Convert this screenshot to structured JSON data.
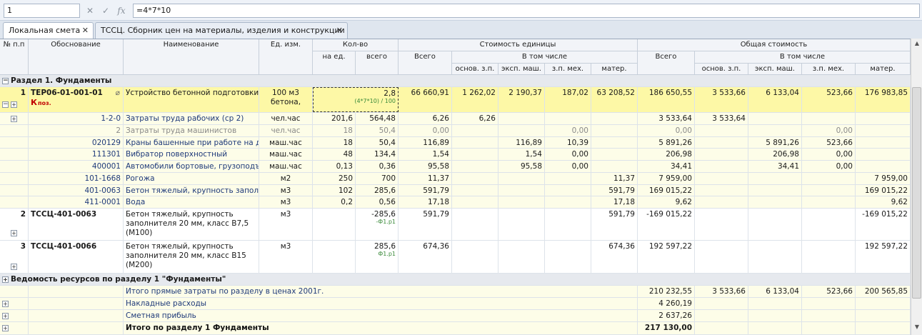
{
  "formula_bar": {
    "cell_ref": "1",
    "formula": "=4*7*10",
    "cancel_icon": "✕",
    "confirm_icon": "✓",
    "fx_icon": "fx"
  },
  "tabs": [
    {
      "label": "Локальная смета",
      "close": "✕"
    },
    {
      "label": "ТССЦ. Сборник цен на материалы, изделия и конструкции",
      "close": "✕"
    }
  ],
  "headers": {
    "num": "№ п.п",
    "basis": "Обоснование",
    "name": "Наименование",
    "unit": "Ед. изм.",
    "qty": "Кол-во",
    "qty_per_unit": "на ед.",
    "qty_total": "всего",
    "unit_cost": "Стоимость единицы",
    "total_cost": "Общая стоимость",
    "all": "Всего",
    "incl": "В том числе",
    "osn": "основ. з.п.",
    "eksp": "эксп. маш.",
    "zpmeh": "з.п. мех.",
    "mater": "матер."
  },
  "section1": "Раздел 1. Фундаменты",
  "item1": {
    "num": "1",
    "code": "ТЕР06-01-001-01",
    "k_label": "К",
    "k_sub": "поз.",
    "name": "Устройство бетонной подготовки",
    "unit": "100 м3 бетона,",
    "qty_total": "2,8",
    "qty_formula": "(4*7*10) / 100",
    "unit_all": "66 660,91",
    "unit_osn": "1 262,02",
    "unit_eksp": "2 190,37",
    "unit_zpmeh": "187,02",
    "unit_mater": "63 208,52",
    "tot_all": "186 650,55",
    "tot_osn": "3 533,66",
    "tot_eksp": "6 133,04",
    "tot_zpmeh": "523,66",
    "tot_mater": "176 983,85"
  },
  "subrows": [
    {
      "code": "1-2-0",
      "name": "Затраты труда рабочих (ср 2)",
      "unit": "чел.час",
      "per": "201,6",
      "tot": "564,48",
      "u_all": "6,26",
      "u_osn": "6,26",
      "u_eksp": "",
      "u_zpmeh": "",
      "u_mater": "",
      "t_all": "3 533,64",
      "t_osn": "3 533,64",
      "t_eksp": "",
      "t_zpmeh": "",
      "t_mater": "",
      "grey": false
    },
    {
      "code": "2",
      "name": "Затраты труда машинистов",
      "unit": "чел.час",
      "per": "18",
      "tot": "50,4",
      "u_all": "0,00",
      "u_osn": "",
      "u_eksp": "",
      "u_zpmeh": "0,00",
      "u_mater": "",
      "t_all": "0,00",
      "t_osn": "",
      "t_eksp": "",
      "t_zpmeh": "0,00",
      "t_mater": "",
      "grey": true
    },
    {
      "code": "020129",
      "name": "Краны башенные при работе на дру",
      "unit": "маш.час",
      "per": "18",
      "tot": "50,4",
      "u_all": "116,89",
      "u_osn": "",
      "u_eksp": "116,89",
      "u_zpmeh": "10,39",
      "u_mater": "",
      "t_all": "5 891,26",
      "t_osn": "",
      "t_eksp": "5 891,26",
      "t_zpmeh": "523,66",
      "t_mater": "",
      "grey": false
    },
    {
      "code": "111301",
      "name": "Вибратор поверхностный",
      "unit": "маш.час",
      "per": "48",
      "tot": "134,4",
      "u_all": "1,54",
      "u_osn": "",
      "u_eksp": "1,54",
      "u_zpmeh": "0,00",
      "u_mater": "",
      "t_all": "206,98",
      "t_osn": "",
      "t_eksp": "206,98",
      "t_zpmeh": "0,00",
      "t_mater": "",
      "grey": false
    },
    {
      "code": "400001",
      "name": "Автомобили бортовые, грузоподъе",
      "unit": "маш.час",
      "per": "0,13",
      "tot": "0,36",
      "u_all": "95,58",
      "u_osn": "",
      "u_eksp": "95,58",
      "u_zpmeh": "0,00",
      "u_mater": "",
      "t_all": "34,41",
      "t_osn": "",
      "t_eksp": "34,41",
      "t_zpmeh": "0,00",
      "t_mater": "",
      "grey": false
    },
    {
      "code": "101-1668",
      "name": "Рогожа",
      "unit": "м2",
      "per": "250",
      "tot": "700",
      "u_all": "11,37",
      "u_osn": "",
      "u_eksp": "",
      "u_zpmeh": "",
      "u_mater": "11,37",
      "t_all": "7 959,00",
      "t_osn": "",
      "t_eksp": "",
      "t_zpmeh": "",
      "t_mater": "7 959,00",
      "grey": false
    },
    {
      "code": "401-0063",
      "name": "Бетон тяжелый, крупность заполни",
      "unit": "м3",
      "per": "102",
      "tot": "285,6",
      "u_all": "591,79",
      "u_osn": "",
      "u_eksp": "",
      "u_zpmeh": "",
      "u_mater": "591,79",
      "t_all": "169 015,22",
      "t_osn": "",
      "t_eksp": "",
      "t_zpmeh": "",
      "t_mater": "169 015,22",
      "grey": false
    },
    {
      "code": "411-0001",
      "name": "Вода",
      "unit": "м3",
      "per": "0,2",
      "tot": "0,56",
      "u_all": "17,18",
      "u_osn": "",
      "u_eksp": "",
      "u_zpmeh": "",
      "u_mater": "17,18",
      "t_all": "9,62",
      "t_osn": "",
      "t_eksp": "",
      "t_zpmeh": "",
      "t_mater": "9,62",
      "grey": false
    }
  ],
  "item2": {
    "num": "2",
    "code": "ТССЦ-401-0063",
    "name": "Бетон тяжелый, крупность заполнителя 20 мм, класс В7,5 (М100)",
    "unit": "м3",
    "qty": "-285,6",
    "qty_note": "-Ф1.р1",
    "u_all": "591,79",
    "u_mater": "591,79",
    "t_all": "-169 015,22",
    "t_mater": "-169 015,22"
  },
  "item3": {
    "num": "3",
    "code": "ТССЦ-401-0066",
    "name": "Бетон тяжелый, крупность заполнителя 20 мм, класс В15 (М200)",
    "unit": "м3",
    "qty": "285,6",
    "qty_note": "Ф1.р1",
    "u_all": "674,36",
    "u_mater": "674,36",
    "t_all": "192 597,22",
    "t_mater": "192 597,22"
  },
  "section2": "Ведомость ресурсов по разделу 1 \"Фундаменты\"",
  "totals": [
    {
      "label": "Итого прямые затраты по разделу в ценах 2001г.",
      "all": "210 232,55",
      "osn": "3 533,66",
      "eksp": "6 133,04",
      "zpmeh": "523,66",
      "mater": "200 565,85"
    },
    {
      "label": "Накладные расходы",
      "all": "4 260,19"
    },
    {
      "label": "Сметная прибыль",
      "all": "2 637,26"
    },
    {
      "label": "Итого по разделу 1 Фундаменты",
      "all": "217 130,00"
    }
  ],
  "colors": {
    "selected_row": "#fdf8a6",
    "sub_row": "#fdfde8",
    "header": "#f2f4f8",
    "link_text": "#1f3a7a"
  }
}
